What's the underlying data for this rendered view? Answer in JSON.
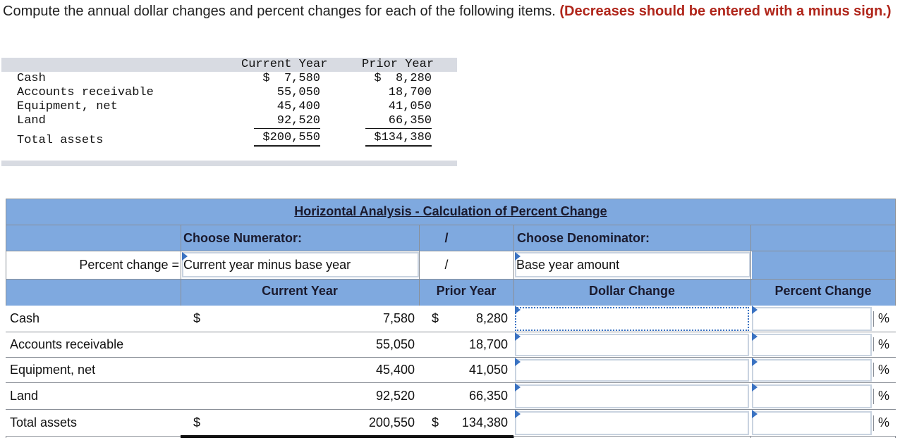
{
  "instructions": {
    "text": "Compute the annual dollar changes and percent changes for each of the following items. ",
    "emphasis": "(Decreases should be entered with a minus sign.)"
  },
  "given": {
    "col_current": "Current Year",
    "col_prior": "Prior Year",
    "rows": [
      {
        "label": "Cash",
        "current": "$  7,580",
        "prior": "$  8,280"
      },
      {
        "label": "Accounts receivable",
        "current": "55,050",
        "prior": "18,700"
      },
      {
        "label": "Equipment, net",
        "current": "45,400",
        "prior": "41,050"
      },
      {
        "label": "Land",
        "current": "92,520",
        "prior": "66,350"
      }
    ],
    "total": {
      "label": "Total assets",
      "current": "$200,550",
      "prior": "$134,380"
    }
  },
  "analysis": {
    "title": "Horizontal Analysis - Calculation of Percent Change",
    "numerator_label": "Choose Numerator:",
    "slash": "/",
    "denominator_label": "Choose Denominator:",
    "percent_change_eq": "Percent change =",
    "numerator_value": "Current year minus base year",
    "denominator_value": "Base year amount",
    "col_current": "Current Year",
    "col_prior": "Prior Year",
    "col_dollar": "Dollar Change",
    "col_percent": "Percent Change",
    "dollar_sign": "$",
    "percent_sign": "%",
    "rows": [
      {
        "label": "Cash",
        "current": "7,580",
        "prior": "8,280",
        "show_dollar": true
      },
      {
        "label": "Accounts receivable",
        "current": "55,050",
        "prior": "18,700",
        "show_dollar": false
      },
      {
        "label": "Equipment, net",
        "current": "45,400",
        "prior": "41,050",
        "show_dollar": false
      },
      {
        "label": "Land",
        "current": "92,520",
        "prior": "66,350",
        "show_dollar": false
      },
      {
        "label": "Total assets",
        "current": "200,550",
        "prior": "134,380",
        "show_dollar": true
      }
    ]
  }
}
